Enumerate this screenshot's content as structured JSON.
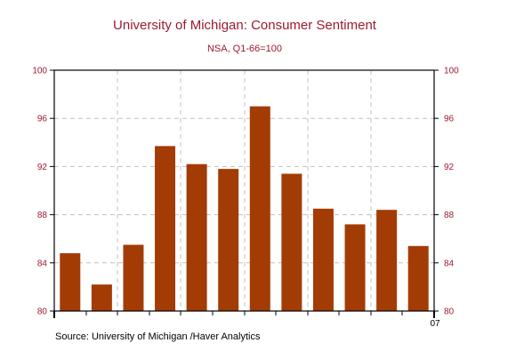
{
  "chart_data": {
    "type": "bar",
    "title": "University of Michigan: Consumer Sentiment",
    "subtitle": "NSA, Q1-66=100",
    "categories": [
      "",
      "",
      "",
      "",
      "",
      "",
      "",
      "",
      "",
      "",
      "",
      ""
    ],
    "values": [
      84.8,
      82.2,
      85.5,
      93.7,
      92.2,
      91.8,
      97.0,
      91.4,
      88.5,
      87.2,
      88.4,
      85.4
    ],
    "ylim": [
      80,
      100
    ],
    "yticks": [
      80,
      84,
      88,
      92,
      96,
      100
    ],
    "ytick_labels": [
      "80",
      "84",
      "88",
      "92",
      "96",
      "100"
    ],
    "secondary_yticks": true,
    "xtick_label": "07",
    "grid": true,
    "legend": "none",
    "source": "Source:  University of Michigan /Haver Analytics"
  },
  "colors": {
    "bar": "#a33c04",
    "title": "#9b1b30",
    "tick_label": "#9b1b30",
    "axis": "#000000",
    "grid": "#c0c0c0"
  }
}
